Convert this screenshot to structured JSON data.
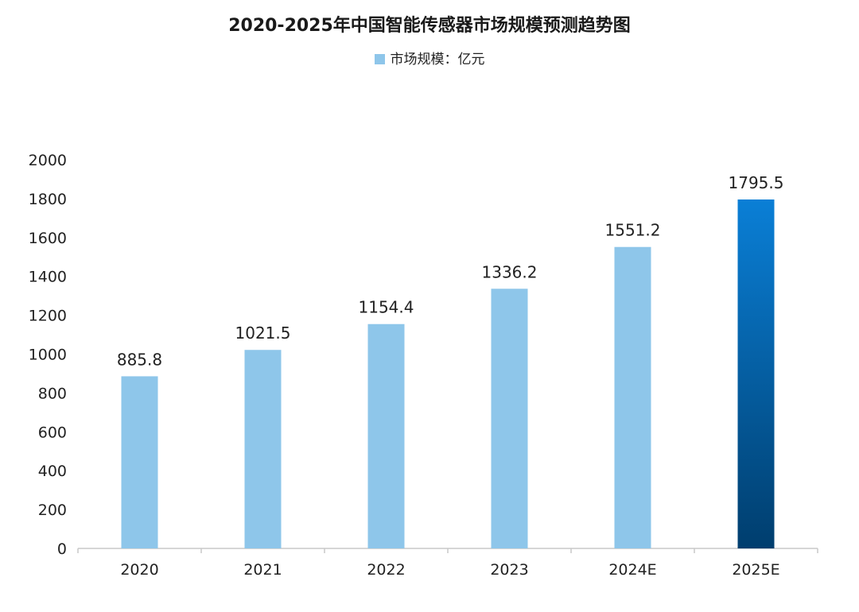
{
  "chart_data": {
    "type": "bar",
    "title": "2020-2025年中国智能传感器市场规模预测趋势图",
    "categories": [
      "2020",
      "2021",
      "2022",
      "2023",
      "2024E",
      "2025E"
    ],
    "series": [
      {
        "name": "市场规模：亿元",
        "values": [
          885.8,
          1021.5,
          1154.4,
          1336.2,
          1551.2,
          1795.5
        ]
      }
    ],
    "data_labels": [
      "885.8",
      "1021.5",
      "1154.4",
      "1336.2",
      "1551.2",
      "1795.5"
    ],
    "ylim": [
      0,
      2000
    ],
    "yticks": [
      "0",
      "200",
      "400",
      "600",
      "800",
      "1000",
      "1200",
      "1400",
      "1600",
      "1800",
      "2000"
    ],
    "legend_position": "top",
    "grid": false,
    "colors": {
      "bar": "#8ec6ea",
      "highlight_top": "#0a7fd6",
      "highlight_bottom": "#003e6e",
      "axis": "#c8c8c8"
    }
  }
}
